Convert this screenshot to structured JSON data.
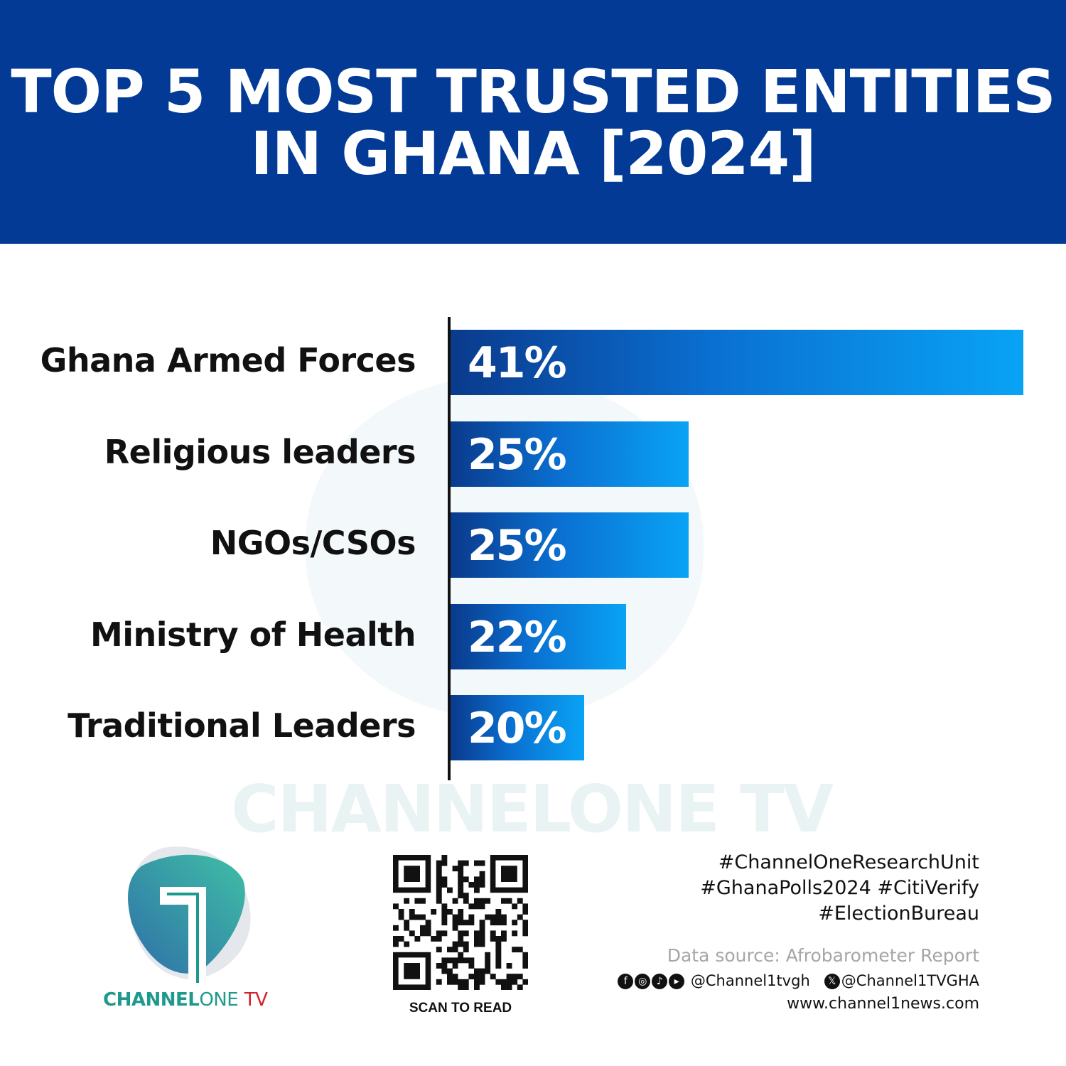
{
  "chart_data": {
    "type": "bar",
    "orientation": "horizontal",
    "title": "TOP 5 MOST TRUSTED ENTITIES IN GHANA [2024]",
    "title_lines": [
      "TOP 5 MOST TRUSTED ENTITIES",
      "IN GHANA [2024]"
    ],
    "categories": [
      "Ghana Armed Forces",
      "Religious leaders",
      "NGOs/CSOs",
      "Ministry of Health",
      "Traditional Leaders"
    ],
    "values": [
      41,
      25,
      25,
      22,
      20
    ],
    "data_labels": [
      "41%",
      "25%",
      "25%",
      "22%",
      "20%"
    ],
    "xlabel": "",
    "ylabel": "",
    "grid": false,
    "legend": "none",
    "colors": {
      "header": "#033a96",
      "bar_start": "#0a3a8c",
      "bar_end": "#09a3f5"
    }
  },
  "brand": {
    "logo_part1": "CHANNEL",
    "logo_part2": "ONE",
    "logo_part3": "TV",
    "watermark": "CHANNELONE TV",
    "teal": "#1e9a8c",
    "red": "#d3222a"
  },
  "qr": {
    "caption": "SCAN TO READ"
  },
  "footer": {
    "hashtags": [
      "#ChannelOneResearchUnit",
      "#GhanaPolls2024 #CitiVerify",
      "#ElectionBureau"
    ],
    "source": "Data source: Afrobarometer Report",
    "social_icons": [
      "facebook-icon",
      "instagram-icon",
      "tiktok-icon",
      "youtube-icon"
    ],
    "handle1": "@Channel1tvgh",
    "handle2": "@Channel1TVGHA",
    "website": "www.channel1news.com"
  }
}
